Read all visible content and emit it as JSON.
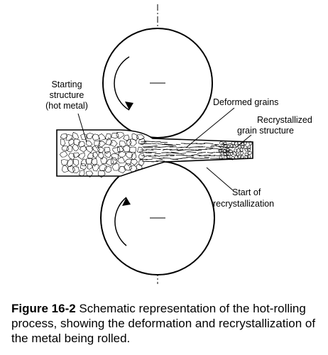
{
  "labels": {
    "starting_structure": [
      "Starting",
      "structure",
      "(hot metal)"
    ],
    "deformed_grains": "Deformed grains",
    "recrystallized": [
      "Recrystallized",
      "grain structure"
    ],
    "start_recrystallization": [
      "Start of",
      "recrystallization"
    ]
  },
  "caption": {
    "figure_number": "Figure 16-2",
    "text": " Schematic representation of the hot-rolling process, showing the deformation and recrystallization of the metal being rolled."
  }
}
